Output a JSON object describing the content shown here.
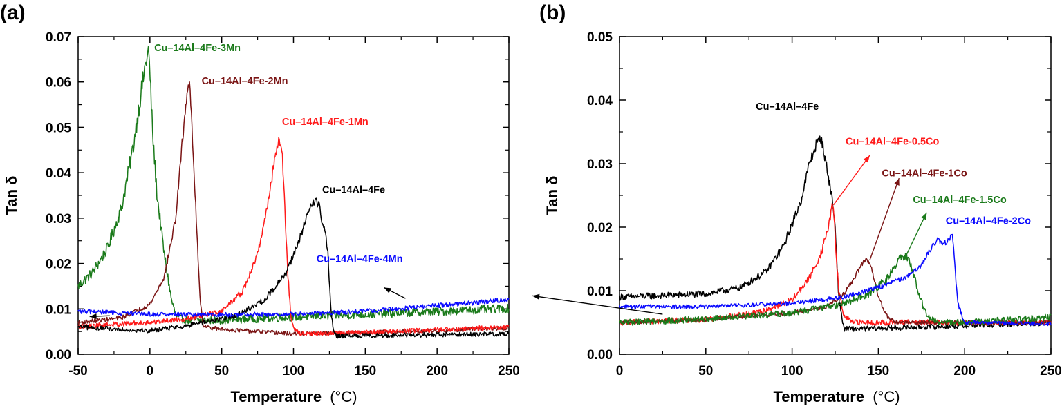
{
  "chart_data": [
    {
      "panel": "(a)",
      "type": "line",
      "xlabel_main": "Temperature",
      "xlabel_unit": "(°C)",
      "ylabel": "Tan δ",
      "xlim": [
        -50,
        250
      ],
      "ylim": [
        0,
        0.07
      ],
      "xticks": [
        -50,
        0,
        50,
        100,
        150,
        200,
        250
      ],
      "xtick_labels": [
        "-50",
        "0",
        "50",
        "100",
        "150",
        "200",
        "250"
      ],
      "yticks": [
        0,
        0.01,
        0.02,
        0.03,
        0.04,
        0.05,
        0.06,
        0.07
      ],
      "ytick_labels": [
        "0.00",
        "0.01",
        "0.02",
        "0.03",
        "0.04",
        "0.05",
        "0.06",
        "0.07"
      ],
      "series": [
        {
          "name": "Cu–14Al–4Fe-3Mn",
          "color": "#1a7a1a",
          "noise": 0.0011,
          "x": [
            -50,
            -40,
            -30,
            -20,
            -12,
            -6,
            -3,
            -1,
            0,
            2,
            5,
            10,
            15,
            18,
            20,
            25,
            30,
            40,
            50,
            100,
            150,
            200,
            250
          ],
          "y": [
            0.015,
            0.018,
            0.023,
            0.032,
            0.045,
            0.058,
            0.064,
            0.067,
            0.062,
            0.048,
            0.035,
            0.022,
            0.012,
            0.0085,
            0.008,
            0.0075,
            0.0075,
            0.0075,
            0.0075,
            0.0082,
            0.0088,
            0.0094,
            0.0101
          ]
        },
        {
          "name": "Cu–14Al–4Fe-2Mn",
          "color": "#7a1414",
          "noise": 0.0006,
          "x": [
            -50,
            -20,
            0,
            10,
            18,
            22,
            25,
            27,
            28,
            30,
            33,
            35,
            37,
            40,
            50,
            100,
            150,
            200,
            250
          ],
          "y": [
            0.007,
            0.008,
            0.011,
            0.017,
            0.03,
            0.045,
            0.055,
            0.06,
            0.058,
            0.045,
            0.025,
            0.012,
            0.0065,
            0.006,
            0.0055,
            0.0045,
            0.0048,
            0.0052,
            0.0058
          ]
        },
        {
          "name": "Cu–14Al–4Fe-1Mn",
          "color": "#ff1a1a",
          "noise": 0.0007,
          "x": [
            -50,
            -30,
            0,
            30,
            50,
            65,
            75,
            82,
            87,
            90,
            92,
            94,
            96,
            98,
            100,
            105,
            150,
            200,
            250
          ],
          "y": [
            0.006,
            0.0065,
            0.007,
            0.008,
            0.0095,
            0.014,
            0.022,
            0.033,
            0.043,
            0.048,
            0.045,
            0.032,
            0.018,
            0.009,
            0.0055,
            0.0045,
            0.0048,
            0.0054,
            0.006
          ]
        },
        {
          "name": "Cu–14Al–4Fe",
          "color": "#000000",
          "noise": 0.0007,
          "x": [
            -50,
            -20,
            0,
            30,
            60,
            80,
            95,
            105,
            110,
            115,
            118,
            120,
            122,
            124,
            126,
            128,
            130,
            150,
            200,
            250
          ],
          "y": [
            0.006,
            0.0055,
            0.0052,
            0.0065,
            0.0085,
            0.012,
            0.018,
            0.026,
            0.031,
            0.034,
            0.033,
            0.029,
            0.027,
            0.022,
            0.01,
            0.0045,
            0.004,
            0.0041,
            0.0043,
            0.0045
          ]
        },
        {
          "name": "Cu–14Al–4Fe-4Mn",
          "color": "#0a0aff",
          "noise": 0.0006,
          "x": [
            -50,
            0,
            50,
            100,
            150,
            200,
            250
          ],
          "y": [
            0.0095,
            0.0088,
            0.0087,
            0.0088,
            0.0095,
            0.0107,
            0.012
          ]
        }
      ],
      "annotations": [
        {
          "text": "Cu–14Al–4Fe-3Mn",
          "color": "#1a7a1a",
          "x": 3,
          "y": 0.0668
        },
        {
          "text": "Cu–14Al–4Fe-2Mn",
          "color": "#7a1414",
          "x": 36,
          "y": 0.0595
        },
        {
          "text": "Cu–14Al–4Fe-1Mn",
          "color": "#ff1a1a",
          "x": 92,
          "y": 0.0505
        },
        {
          "text": "Cu–14Al–4Fe",
          "color": "#000000",
          "x": 120,
          "y": 0.0355
        },
        {
          "text": "Cu–14Al–4Fe-4Mn",
          "color": "#0a0aff",
          "x": 116,
          "y": 0.0203
        }
      ],
      "arrows": [
        {
          "from": [
            178,
            0.0123
          ],
          "to": [
            163,
            0.0147
          ],
          "color": "#000000"
        },
        {
          "from": [
            -28,
            0.0085
          ],
          "to": [
            -42,
            0.0083
          ],
          "color": "#000000"
        }
      ]
    },
    {
      "panel": "(b)",
      "type": "line",
      "xlabel_main": "Temperature",
      "xlabel_unit": "(°C)",
      "ylabel": "Tan δ",
      "xlim": [
        0,
        250
      ],
      "ylim": [
        0,
        0.05
      ],
      "xticks": [
        0,
        50,
        100,
        150,
        200,
        250
      ],
      "xtick_labels": [
        "0",
        "50",
        "100",
        "150",
        "200",
        "250"
      ],
      "yticks": [
        0,
        0.01,
        0.02,
        0.03,
        0.04,
        0.05
      ],
      "ytick_labels": [
        "0.00",
        "0.01",
        "0.02",
        "0.03",
        "0.04",
        "0.05"
      ],
      "series": [
        {
          "name": "Cu–14Al–4Fe",
          "color": "#000000",
          "noise": 0.0006,
          "x": [
            0,
            20,
            50,
            70,
            85,
            95,
            105,
            110,
            114,
            117,
            119,
            121,
            123,
            125,
            127,
            130,
            140,
            200,
            250
          ],
          "y": [
            0.009,
            0.0092,
            0.0095,
            0.0105,
            0.013,
            0.017,
            0.024,
            0.03,
            0.033,
            0.034,
            0.031,
            0.028,
            0.025,
            0.02,
            0.009,
            0.004,
            0.004,
            0.0045,
            0.005
          ]
        },
        {
          "name": "Cu–14Al–4Fe-0.5Co",
          "color": "#ff1a1a",
          "noise": 0.0006,
          "x": [
            0,
            50,
            80,
            100,
            110,
            117,
            121,
            123,
            124,
            125,
            127,
            130,
            135,
            200,
            250
          ],
          "y": [
            0.005,
            0.0055,
            0.0065,
            0.0085,
            0.012,
            0.016,
            0.02,
            0.023,
            0.0235,
            0.018,
            0.01,
            0.006,
            0.005,
            0.005,
            0.005
          ]
        },
        {
          "name": "Cu–14Al–4Fe-1Co",
          "color": "#7a1414",
          "noise": 0.0004,
          "x": [
            0,
            50,
            100,
            120,
            130,
            136,
            140,
            143,
            146,
            150,
            155,
            160,
            200,
            250
          ],
          "y": [
            0.005,
            0.0055,
            0.0065,
            0.0075,
            0.0095,
            0.012,
            0.014,
            0.015,
            0.0135,
            0.009,
            0.006,
            0.005,
            0.005,
            0.005
          ]
        },
        {
          "name": "Cu–14Al–4Fe-1.5Co",
          "color": "#1a7a1a",
          "noise": 0.0007,
          "x": [
            0,
            50,
            100,
            130,
            145,
            155,
            160,
            164,
            167,
            170,
            174,
            178,
            185,
            200,
            250
          ],
          "y": [
            0.005,
            0.0055,
            0.0065,
            0.008,
            0.0095,
            0.012,
            0.014,
            0.0155,
            0.015,
            0.013,
            0.009,
            0.006,
            0.005,
            0.005,
            0.0058
          ]
        },
        {
          "name": "Cu–14Al–4Fe-2Co",
          "color": "#0a0aff",
          "noise": 0.0004,
          "x": [
            0,
            50,
            100,
            130,
            150,
            165,
            175,
            180,
            184,
            188,
            190,
            192,
            193,
            194,
            196,
            200,
            250
          ],
          "y": [
            0.0075,
            0.0075,
            0.008,
            0.009,
            0.0105,
            0.012,
            0.014,
            0.0165,
            0.018,
            0.0175,
            0.0178,
            0.0185,
            0.0188,
            0.015,
            0.008,
            0.005,
            0.0048
          ]
        }
      ],
      "annotations": [
        {
          "text": "Cu–14Al–4Fe",
          "color": "#000000",
          "x": 79,
          "y": 0.0385
        },
        {
          "text": "Cu–14Al–4Fe-0.5Co",
          "color": "#ff1a1a",
          "x": 131,
          "y": 0.033
        },
        {
          "text": "Cu–14Al–4Fe-1Co",
          "color": "#7a1414",
          "x": 152,
          "y": 0.028
        },
        {
          "text": "Cu–14Al–4Fe-1.5Co",
          "color": "#1a7a1a",
          "x": 170,
          "y": 0.0238
        },
        {
          "text": "Cu–14Al–4Fe-2Co",
          "color": "#0a0aff",
          "x": 189,
          "y": 0.0205
        }
      ],
      "arrows": [
        {
          "from": [
            124,
            0.0235
          ],
          "to": [
            145,
            0.0313
          ],
          "color": "#ff1a1a"
        },
        {
          "from": [
            145,
            0.0148
          ],
          "to": [
            162,
            0.0277
          ],
          "color": "#7a1414"
        },
        {
          "from": [
            166,
            0.0155
          ],
          "to": [
            178,
            0.0223
          ],
          "color": "#1a7a1a"
        },
        {
          "from": [
            25,
            0.0063
          ],
          "to": [
            -50,
            0.0092
          ],
          "color": "#000000"
        }
      ]
    }
  ]
}
